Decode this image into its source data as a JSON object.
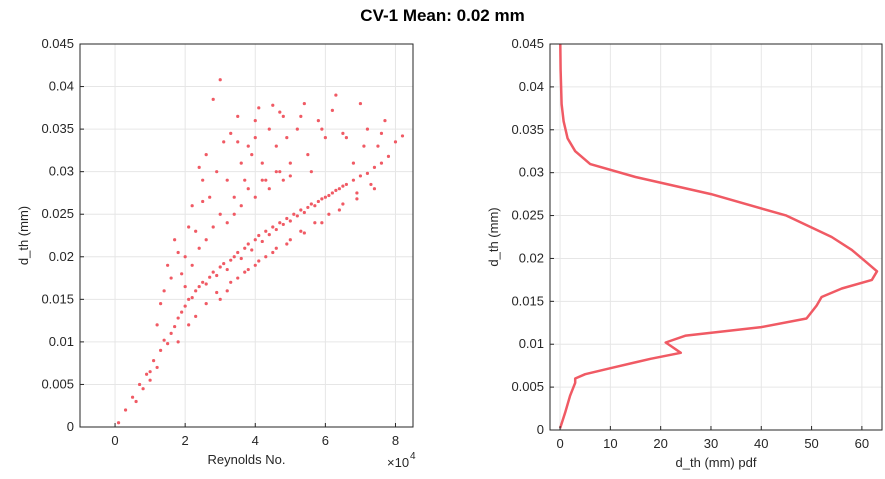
{
  "figure": {
    "title": "CV-1 Mean: 0.02 mm"
  },
  "colors": {
    "series": "#f05a64",
    "grid": "#e6e6e6",
    "axis": "#262626"
  },
  "chart_data": [
    {
      "type": "scatter",
      "xlabel": "Reynolds No.",
      "ylabel": "d_th (mm)",
      "x_multiplier_label": "×10",
      "x_multiplier_exp": "4",
      "xlim": [
        -1,
        8.5
      ],
      "ylim": [
        0,
        0.045
      ],
      "xticks": [
        0,
        2,
        4,
        6,
        8
      ],
      "xtick_labels": [
        "0",
        "2",
        "4",
        "6",
        "8"
      ],
      "yticks": [
        0,
        0.005,
        0.01,
        0.015,
        0.02,
        0.025,
        0.03,
        0.035,
        0.04,
        0.045
      ],
      "ytick_labels": [
        "0",
        "0.005",
        "0.01",
        "0.015",
        "0.02",
        "0.025",
        "0.03",
        "0.035",
        "0.04",
        "0.045"
      ],
      "grid": true,
      "x_units_note": "x values in units of 10^4",
      "points": [
        [
          0.1,
          0.0005
        ],
        [
          0.3,
          0.002
        ],
        [
          0.5,
          0.0035
        ],
        [
          0.7,
          0.005
        ],
        [
          0.9,
          0.0062
        ],
        [
          1.1,
          0.0078
        ],
        [
          1.3,
          0.009
        ],
        [
          1.4,
          0.0102
        ],
        [
          1.5,
          0.0098
        ],
        [
          1.6,
          0.011
        ],
        [
          1.7,
          0.0118
        ],
        [
          1.8,
          0.0128
        ],
        [
          1.9,
          0.0135
        ],
        [
          2.0,
          0.0142
        ],
        [
          2.1,
          0.015
        ],
        [
          2.2,
          0.0152
        ],
        [
          2.3,
          0.016
        ],
        [
          2.4,
          0.0165
        ],
        [
          2.5,
          0.017
        ],
        [
          2.6,
          0.0168
        ],
        [
          2.7,
          0.0176
        ],
        [
          2.8,
          0.0182
        ],
        [
          2.9,
          0.0178
        ],
        [
          3.0,
          0.0188
        ],
        [
          3.1,
          0.0192
        ],
        [
          3.2,
          0.0185
        ],
        [
          3.3,
          0.0196
        ],
        [
          3.4,
          0.02
        ],
        [
          3.5,
          0.0205
        ],
        [
          3.6,
          0.0198
        ],
        [
          3.7,
          0.021
        ],
        [
          3.8,
          0.0215
        ],
        [
          3.9,
          0.0208
        ],
        [
          4.0,
          0.022
        ],
        [
          4.1,
          0.0225
        ],
        [
          4.2,
          0.0218
        ],
        [
          4.3,
          0.023
        ],
        [
          4.4,
          0.0226
        ],
        [
          4.5,
          0.0235
        ],
        [
          4.6,
          0.0232
        ],
        [
          4.7,
          0.024
        ],
        [
          4.8,
          0.0238
        ],
        [
          4.9,
          0.0245
        ],
        [
          5.0,
          0.0242
        ],
        [
          5.1,
          0.025
        ],
        [
          5.2,
          0.0248
        ],
        [
          5.3,
          0.0255
        ],
        [
          5.4,
          0.0252
        ],
        [
          5.5,
          0.0258
        ],
        [
          5.6,
          0.0262
        ],
        [
          5.7,
          0.026
        ],
        [
          5.8,
          0.0265
        ],
        [
          5.9,
          0.0268
        ],
        [
          6.0,
          0.027
        ],
        [
          6.1,
          0.0272
        ],
        [
          6.2,
          0.0275
        ],
        [
          6.3,
          0.0278
        ],
        [
          6.4,
          0.028
        ],
        [
          6.5,
          0.0283
        ],
        [
          6.6,
          0.0285
        ],
        [
          6.8,
          0.029
        ],
        [
          7.0,
          0.0295
        ],
        [
          7.2,
          0.0298
        ],
        [
          7.4,
          0.0305
        ],
        [
          7.6,
          0.031
        ],
        [
          7.8,
          0.0318
        ],
        [
          8.0,
          0.0335
        ],
        [
          8.2,
          0.0342
        ],
        [
          1.2,
          0.012
        ],
        [
          1.4,
          0.016
        ],
        [
          1.5,
          0.019
        ],
        [
          1.7,
          0.022
        ],
        [
          1.9,
          0.018
        ],
        [
          2.0,
          0.0165
        ],
        [
          2.2,
          0.026
        ],
        [
          2.3,
          0.023
        ],
        [
          2.4,
          0.0305
        ],
        [
          2.5,
          0.029
        ],
        [
          2.6,
          0.032
        ],
        [
          2.7,
          0.027
        ],
        [
          2.8,
          0.0385
        ],
        [
          3.0,
          0.0408
        ],
        [
          3.1,
          0.0335
        ],
        [
          3.2,
          0.029
        ],
        [
          3.3,
          0.0345
        ],
        [
          3.4,
          0.025
        ],
        [
          3.5,
          0.0365
        ],
        [
          3.6,
          0.031
        ],
        [
          3.7,
          0.029
        ],
        [
          3.8,
          0.033
        ],
        [
          3.9,
          0.032
        ],
        [
          4.0,
          0.034
        ],
        [
          4.1,
          0.0375
        ],
        [
          4.2,
          0.031
        ],
        [
          4.3,
          0.029
        ],
        [
          4.4,
          0.035
        ],
        [
          4.5,
          0.0378
        ],
        [
          4.6,
          0.033
        ],
        [
          4.7,
          0.03
        ],
        [
          4.8,
          0.0365
        ],
        [
          4.9,
          0.034
        ],
        [
          5.0,
          0.0295
        ],
        [
          5.2,
          0.035
        ],
        [
          5.4,
          0.038
        ],
        [
          5.5,
          0.032
        ],
        [
          5.6,
          0.03
        ],
        [
          5.8,
          0.036
        ],
        [
          6.0,
          0.034
        ],
        [
          6.2,
          0.0372
        ],
        [
          6.3,
          0.039
        ],
        [
          6.5,
          0.0345
        ],
        [
          6.8,
          0.031
        ],
        [
          7.0,
          0.038
        ],
        [
          7.2,
          0.035
        ],
        [
          7.5,
          0.033
        ],
        [
          7.7,
          0.036
        ],
        [
          2.0,
          0.02
        ],
        [
          2.2,
          0.019
        ],
        [
          2.4,
          0.021
        ],
        [
          2.6,
          0.022
        ],
        [
          2.8,
          0.0235
        ],
        [
          3.0,
          0.025
        ],
        [
          3.2,
          0.024
        ],
        [
          3.4,
          0.027
        ],
        [
          3.6,
          0.026
        ],
        [
          3.8,
          0.028
        ],
        [
          4.0,
          0.027
        ],
        [
          4.2,
          0.029
        ],
        [
          4.4,
          0.028
        ],
        [
          4.6,
          0.03
        ],
        [
          4.8,
          0.029
        ],
        [
          5.0,
          0.031
        ],
        [
          3.0,
          0.015
        ],
        [
          3.2,
          0.016
        ],
        [
          3.5,
          0.0175
        ],
        [
          3.8,
          0.0185
        ],
        [
          4.0,
          0.019
        ],
        [
          4.3,
          0.02
        ],
        [
          4.6,
          0.021
        ],
        [
          5.0,
          0.022
        ],
        [
          5.3,
          0.023
        ],
        [
          5.7,
          0.024
        ],
        [
          6.1,
          0.025
        ],
        [
          6.5,
          0.0262
        ],
        [
          6.9,
          0.0275
        ],
        [
          7.3,
          0.0285
        ],
        [
          1.0,
          0.0065
        ],
        [
          1.8,
          0.01
        ],
        [
          2.1,
          0.012
        ],
        [
          2.3,
          0.013
        ],
        [
          2.6,
          0.0145
        ],
        [
          2.9,
          0.0158
        ],
        [
          3.3,
          0.017
        ],
        [
          3.7,
          0.0182
        ],
        [
          4.1,
          0.0195
        ],
        [
          4.5,
          0.0205
        ],
        [
          4.9,
          0.0215
        ],
        [
          5.4,
          0.0228
        ],
        [
          5.9,
          0.024
        ],
        [
          6.4,
          0.0255
        ],
        [
          6.9,
          0.0268
        ],
        [
          7.4,
          0.028
        ],
        [
          1.3,
          0.0145
        ],
        [
          1.6,
          0.0175
        ],
        [
          1.8,
          0.0205
        ],
        [
          2.1,
          0.0235
        ],
        [
          2.5,
          0.0265
        ],
        [
          2.9,
          0.03
        ],
        [
          3.5,
          0.0335
        ],
        [
          4.0,
          0.036
        ],
        [
          4.7,
          0.037
        ],
        [
          5.3,
          0.0365
        ],
        [
          5.9,
          0.035
        ],
        [
          6.6,
          0.034
        ],
        [
          7.1,
          0.033
        ],
        [
          7.6,
          0.0345
        ],
        [
          0.6,
          0.003
        ],
        [
          0.8,
          0.0045
        ],
        [
          1.0,
          0.0055
        ],
        [
          1.2,
          0.007
        ]
      ]
    },
    {
      "type": "line",
      "xlabel": "d_th (mm) pdf",
      "ylabel": "d_th (mm)",
      "xlim": [
        -2,
        64
      ],
      "ylim": [
        0,
        0.045
      ],
      "xticks": [
        0,
        10,
        20,
        30,
        40,
        50,
        60
      ],
      "xtick_labels": [
        "0",
        "10",
        "20",
        "30",
        "40",
        "50",
        "60"
      ],
      "yticks": [
        0,
        0.005,
        0.01,
        0.015,
        0.02,
        0.025,
        0.03,
        0.035,
        0.04,
        0.045
      ],
      "ytick_labels": [
        "0",
        "0.005",
        "0.01",
        "0.015",
        "0.02",
        "0.025",
        "0.03",
        "0.035",
        "0.04",
        "0.045"
      ],
      "grid": true,
      "x": [
        0,
        1,
        2,
        3,
        3,
        5,
        10,
        18,
        24,
        22,
        21,
        25,
        40,
        49,
        51,
        52,
        56,
        62,
        63,
        61,
        58,
        54,
        45,
        30,
        15,
        6,
        3,
        1.5,
        0.7,
        0.3,
        0.1,
        0.05
      ],
      "y": [
        0.0002,
        0.002,
        0.004,
        0.0055,
        0.006,
        0.0065,
        0.0072,
        0.0083,
        0.009,
        0.0098,
        0.0102,
        0.011,
        0.012,
        0.013,
        0.0145,
        0.0155,
        0.0165,
        0.0175,
        0.0185,
        0.0195,
        0.021,
        0.0225,
        0.025,
        0.0275,
        0.0295,
        0.031,
        0.0325,
        0.034,
        0.036,
        0.038,
        0.042,
        0.045
      ]
    }
  ]
}
